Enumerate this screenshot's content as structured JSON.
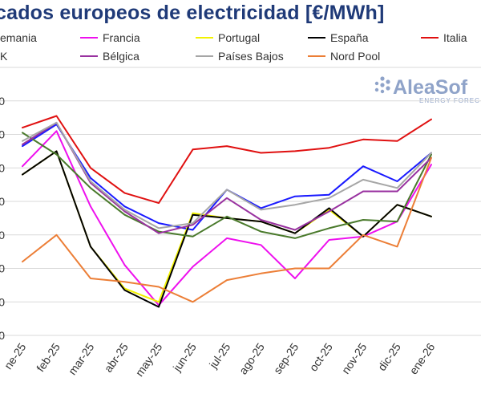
{
  "chart_data": {
    "type": "line",
    "title": "cados europeos de electricidad [€/MWh]",
    "categories": [
      "ne-25",
      "feb-25",
      "mar-25",
      "abr-25",
      "may-25",
      "jun-25",
      "jul-25",
      "ago-25",
      "sep-25",
      "oct-25",
      "nov-25",
      "dic-25",
      "ene-26"
    ],
    "ylim": [
      0,
      160
    ],
    "y_tick_labels": [
      "0",
      "0",
      "0",
      "0",
      "0",
      "0",
      "0",
      "0",
      ""
    ],
    "grid": true,
    "legend_placement": "top",
    "series": [
      {
        "name": "emania",
        "color": "#1a1aff",
        "values": [
          113,
          126,
          94,
          77,
          67,
          63,
          87,
          76,
          83,
          84,
          101,
          92,
          109
        ]
      },
      {
        "name": "Francia",
        "color": "#ee10ee",
        "values": [
          101,
          122,
          77,
          42,
          18,
          41,
          58,
          54,
          34,
          57,
          59,
          68,
          102
        ]
      },
      {
        "name": "Portugal",
        "color": "#f2f200",
        "values": [
          96,
          110,
          53,
          28,
          20,
          73,
          70,
          68,
          61,
          75,
          59,
          78,
          71
        ]
      },
      {
        "name": "España",
        "color": "#000000",
        "values": [
          96,
          110,
          53,
          27,
          17,
          72,
          70,
          68,
          61,
          76,
          59,
          78,
          71
        ]
      },
      {
        "name": "Italia",
        "color": "#e01010",
        "values": [
          124,
          131,
          100,
          85,
          79,
          111,
          113,
          109,
          110,
          112,
          117,
          116,
          129
        ]
      },
      {
        "name": "K",
        "color": "#4a7a2c",
        "values": [
          121,
          108,
          88,
          72,
          62,
          59,
          71,
          62,
          58,
          64,
          69,
          68,
          108
        ]
      },
      {
        "name": "Bélgica",
        "color": "#9932a0",
        "values": [
          114,
          127,
          91,
          74,
          61,
          66,
          82,
          69,
          63,
          74,
          86,
          86,
          106
        ]
      },
      {
        "name": "Países Bajos",
        "color": "#a6a6a6",
        "values": [
          116,
          127,
          92,
          75,
          64,
          67,
          87,
          75,
          78,
          82,
          93,
          88,
          109
        ]
      },
      {
        "name": "Nord Pool",
        "color": "#ec7e36",
        "values": [
          44,
          60,
          34,
          32,
          29,
          20,
          33,
          37,
          40,
          40,
          60,
          53,
          106
        ]
      }
    ]
  },
  "watermark": {
    "text": "AleaSof",
    "subtext": "ENERGY FOREC"
  }
}
